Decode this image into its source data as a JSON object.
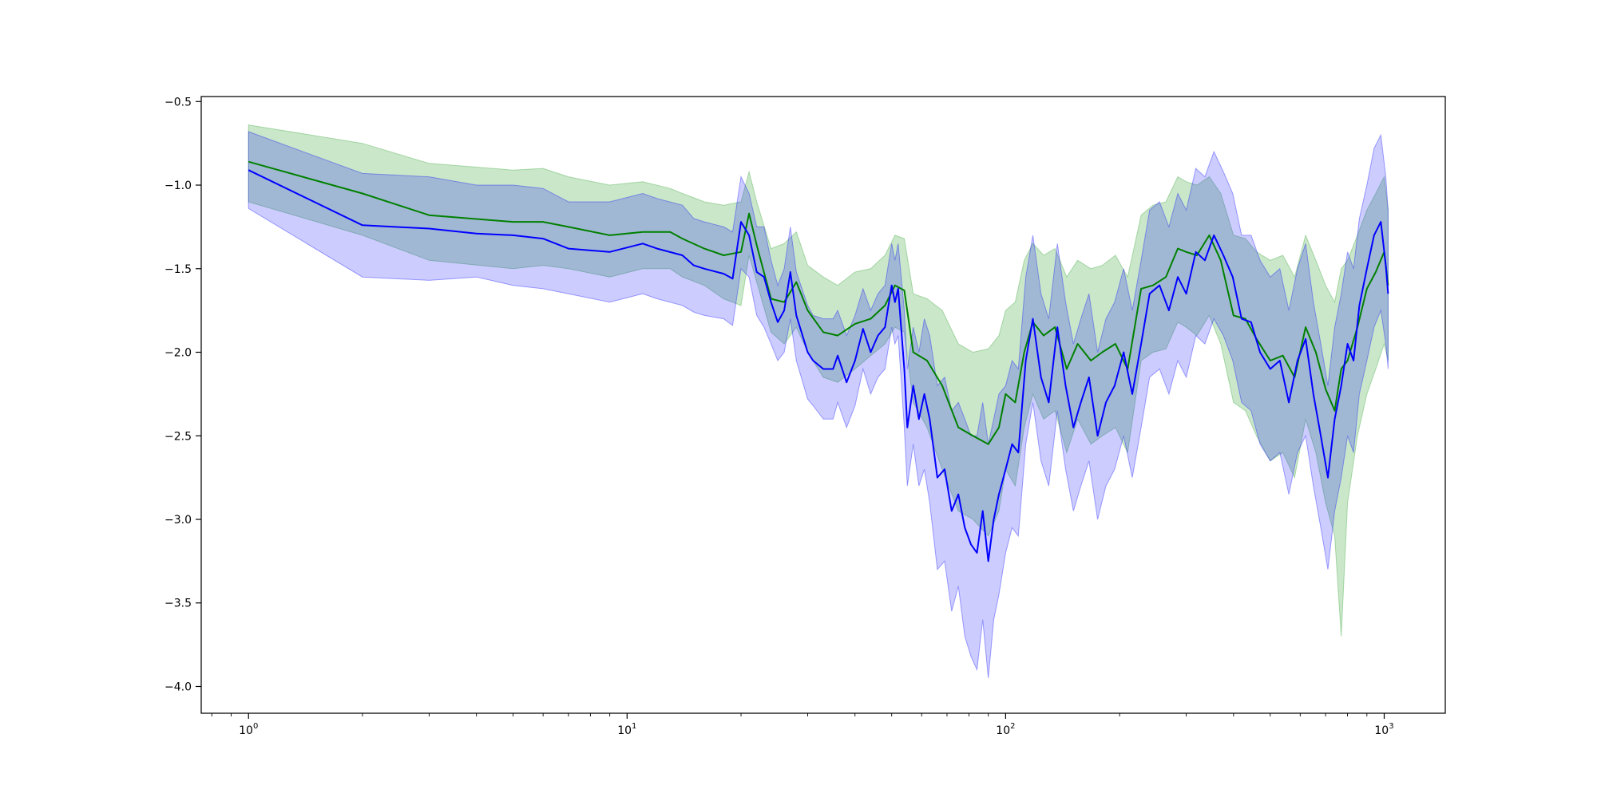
{
  "chart_data": {
    "type": "line",
    "title": "",
    "xlabel": "",
    "ylabel": "",
    "xscale": "log",
    "xlim": [
      0.75,
      1450
    ],
    "ylim": [
      -4.16,
      -0.47
    ],
    "grid": false,
    "legend": "none",
    "x_ticks": [
      {
        "value": 1,
        "base": "10",
        "exp": "0"
      },
      {
        "value": 10,
        "base": "10",
        "exp": "1"
      },
      {
        "value": 100,
        "base": "10",
        "exp": "2"
      },
      {
        "value": 1000,
        "base": "10",
        "exp": "3"
      }
    ],
    "y_ticks": [
      {
        "value": -0.5,
        "label": "−0.5"
      },
      {
        "value": -1.0,
        "label": "−1.0"
      },
      {
        "value": -1.5,
        "label": "−1.5"
      },
      {
        "value": -2.0,
        "label": "−2.0"
      },
      {
        "value": -2.5,
        "label": "−2.5"
      },
      {
        "value": -3.0,
        "label": "−3.0"
      },
      {
        "value": -3.5,
        "label": "−3.5"
      },
      {
        "value": -4.0,
        "label": "−4.0"
      }
    ],
    "series": [
      {
        "color": "#008000",
        "band_color": "#2ca02c",
        "band_opacity": 0.25,
        "x": [
          1,
          2,
          3,
          5,
          6,
          7,
          9,
          11,
          13,
          14,
          16,
          18,
          20,
          21,
          22,
          24,
          26,
          28,
          30,
          33,
          36,
          40,
          44,
          48,
          51,
          54,
          57,
          62,
          68,
          75,
          82,
          90,
          96,
          100,
          106,
          112,
          118,
          126,
          135,
          145,
          155,
          168,
          180,
          195,
          210,
          228,
          245,
          265,
          285,
          300,
          320,
          345,
          370,
          400,
          430,
          460,
          500,
          540,
          580,
          620,
          660,
          700,
          740,
          770,
          800,
          850,
          900,
          950,
          1000,
          1024
        ],
        "y": [
          -0.86,
          -1.05,
          -1.18,
          -1.22,
          -1.22,
          -1.25,
          -1.3,
          -1.28,
          -1.28,
          -1.32,
          -1.38,
          -1.42,
          -1.4,
          -1.17,
          -1.36,
          -1.68,
          -1.7,
          -1.58,
          -1.75,
          -1.88,
          -1.9,
          -1.83,
          -1.8,
          -1.72,
          -1.6,
          -1.63,
          -2.0,
          -2.05,
          -2.2,
          -2.45,
          -2.5,
          -2.55,
          -2.45,
          -2.25,
          -2.3,
          -2.0,
          -1.82,
          -1.9,
          -1.85,
          -2.1,
          -1.95,
          -2.05,
          -2.0,
          -1.95,
          -2.1,
          -1.62,
          -1.6,
          -1.55,
          -1.38,
          -1.4,
          -1.42,
          -1.3,
          -1.45,
          -1.78,
          -1.8,
          -1.92,
          -2.05,
          -2.02,
          -2.15,
          -1.85,
          -2.0,
          -2.22,
          -2.35,
          -2.1,
          -2.05,
          -1.85,
          -1.62,
          -1.52,
          -1.4,
          -1.6
        ],
        "lower": [
          -1.1,
          -1.3,
          -1.45,
          -1.5,
          -1.48,
          -1.5,
          -1.55,
          -1.5,
          -1.5,
          -1.55,
          -1.6,
          -1.68,
          -1.72,
          -1.42,
          -1.58,
          -1.88,
          -1.95,
          -1.85,
          -2.0,
          -2.15,
          -2.18,
          -2.1,
          -2.02,
          -1.95,
          -1.85,
          -1.88,
          -2.3,
          -2.45,
          -2.7,
          -2.95,
          -3.0,
          -3.1,
          -2.95,
          -2.7,
          -2.8,
          -2.45,
          -2.25,
          -2.4,
          -2.35,
          -2.6,
          -2.4,
          -2.55,
          -2.5,
          -2.45,
          -2.6,
          -2.05,
          -2.0,
          -1.98,
          -1.82,
          -1.85,
          -1.9,
          -1.78,
          -1.95,
          -2.3,
          -2.35,
          -2.5,
          -2.65,
          -2.6,
          -2.75,
          -2.4,
          -2.6,
          -2.9,
          -3.1,
          -3.7,
          -2.9,
          -2.5,
          -2.25,
          -2.1,
          -1.95,
          -2.05
        ],
        "upper": [
          -0.64,
          -0.75,
          -0.87,
          -0.91,
          -0.9,
          -0.95,
          -1.0,
          -0.98,
          -1.02,
          -1.05,
          -1.1,
          -1.12,
          -1.1,
          -0.92,
          -1.1,
          -1.38,
          -1.35,
          -1.28,
          -1.48,
          -1.55,
          -1.6,
          -1.52,
          -1.5,
          -1.42,
          -1.3,
          -1.32,
          -1.65,
          -1.68,
          -1.75,
          -1.95,
          -2.0,
          -1.98,
          -1.9,
          -1.75,
          -1.7,
          -1.45,
          -1.35,
          -1.42,
          -1.38,
          -1.55,
          -1.45,
          -1.5,
          -1.48,
          -1.42,
          -1.55,
          -1.18,
          -1.12,
          -1.1,
          -0.95,
          -0.98,
          -1.0,
          -0.95,
          -1.05,
          -1.3,
          -1.32,
          -1.4,
          -1.45,
          -1.42,
          -1.55,
          -1.3,
          -1.45,
          -1.6,
          -1.7,
          -1.5,
          -1.45,
          -1.3,
          -1.15,
          -1.05,
          -0.95,
          -1.15
        ]
      },
      {
        "color": "#0000ff",
        "band_color": "#0000ff",
        "band_opacity": 0.2,
        "x": [
          1,
          2,
          3,
          4,
          5,
          6,
          7,
          9,
          11,
          12,
          14,
          15,
          16,
          18,
          19,
          20,
          21,
          22,
          23,
          24,
          25,
          26,
          27,
          28,
          30,
          31,
          33,
          35,
          36,
          38,
          40,
          42,
          44,
          46,
          48,
          50,
          51,
          52,
          54,
          55,
          57,
          59,
          61,
          63,
          66,
          69,
          72,
          75,
          78,
          81,
          84,
          87,
          90,
          93,
          96,
          100,
          104,
          108,
          113,
          118,
          124,
          130,
          137,
          144,
          151,
          158,
          166,
          175,
          184,
          194,
          205,
          216,
          228,
          240,
          255,
          270,
          285,
          300,
          318,
          336,
          355,
          376,
          398,
          420,
          445,
          470,
          500,
          530,
          560,
          590,
          620,
          650,
          680,
          710,
          740,
          770,
          800,
          830,
          860,
          900,
          940,
          980,
          1010,
          1024
        ],
        "y": [
          -0.91,
          -1.24,
          -1.26,
          -1.29,
          -1.3,
          -1.32,
          -1.38,
          -1.4,
          -1.35,
          -1.38,
          -1.42,
          -1.48,
          -1.5,
          -1.53,
          -1.56,
          -1.22,
          -1.3,
          -1.52,
          -1.55,
          -1.7,
          -1.82,
          -1.75,
          -1.52,
          -1.78,
          -2.0,
          -2.05,
          -2.1,
          -2.1,
          -2.02,
          -2.18,
          -2.05,
          -1.86,
          -2.0,
          -1.9,
          -1.85,
          -1.6,
          -1.7,
          -1.62,
          -2.1,
          -2.45,
          -2.2,
          -2.4,
          -2.25,
          -2.4,
          -2.75,
          -2.7,
          -2.95,
          -2.85,
          -3.05,
          -3.15,
          -3.2,
          -2.95,
          -3.25,
          -3.0,
          -2.85,
          -2.7,
          -2.55,
          -2.6,
          -2.05,
          -1.8,
          -2.15,
          -2.3,
          -1.85,
          -2.2,
          -2.45,
          -2.3,
          -2.15,
          -2.5,
          -2.3,
          -2.2,
          -2.0,
          -2.25,
          -1.95,
          -1.65,
          -1.6,
          -1.75,
          -1.55,
          -1.65,
          -1.4,
          -1.45,
          -1.3,
          -1.42,
          -1.55,
          -1.8,
          -1.82,
          -2.0,
          -2.1,
          -2.05,
          -2.3,
          -2.05,
          -1.92,
          -2.25,
          -2.5,
          -2.75,
          -2.4,
          -2.2,
          -1.95,
          -2.05,
          -1.72,
          -1.5,
          -1.3,
          -1.22,
          -1.48,
          -1.65
        ],
        "lower": [
          -1.14,
          -1.55,
          -1.57,
          -1.55,
          -1.6,
          -1.62,
          -1.65,
          -1.7,
          -1.65,
          -1.68,
          -1.72,
          -1.76,
          -1.78,
          -1.8,
          -1.84,
          -1.5,
          -1.55,
          -1.78,
          -1.85,
          -1.95,
          -2.05,
          -2.0,
          -1.8,
          -2.05,
          -2.28,
          -2.32,
          -2.4,
          -2.4,
          -2.3,
          -2.45,
          -2.32,
          -2.1,
          -2.25,
          -2.15,
          -2.1,
          -1.85,
          -1.95,
          -1.9,
          -2.45,
          -2.8,
          -2.55,
          -2.8,
          -2.7,
          -2.9,
          -3.3,
          -3.25,
          -3.55,
          -3.4,
          -3.7,
          -3.82,
          -3.9,
          -3.6,
          -3.95,
          -3.6,
          -3.45,
          -3.2,
          -3.05,
          -3.1,
          -2.55,
          -2.3,
          -2.65,
          -2.8,
          -2.35,
          -2.7,
          -2.95,
          -2.8,
          -2.65,
          -3.0,
          -2.8,
          -2.7,
          -2.5,
          -2.75,
          -2.45,
          -2.15,
          -2.1,
          -2.25,
          -2.05,
          -2.15,
          -1.9,
          -1.95,
          -1.8,
          -1.9,
          -2.05,
          -2.3,
          -2.35,
          -2.55,
          -2.65,
          -2.6,
          -2.85,
          -2.6,
          -2.5,
          -2.8,
          -3.05,
          -3.3,
          -2.95,
          -2.75,
          -2.5,
          -2.6,
          -2.25,
          -2.05,
          -1.85,
          -1.75,
          -1.95,
          -2.1
        ],
        "upper": [
          -0.68,
          -0.93,
          -0.95,
          -1.0,
          -1.0,
          -1.02,
          -1.1,
          -1.1,
          -1.05,
          -1.08,
          -1.12,
          -1.2,
          -1.22,
          -1.25,
          -1.28,
          -0.95,
          -1.05,
          -1.25,
          -1.25,
          -1.45,
          -1.6,
          -1.5,
          -1.25,
          -1.52,
          -1.72,
          -1.78,
          -1.8,
          -1.8,
          -1.75,
          -1.9,
          -1.78,
          -1.62,
          -1.75,
          -1.65,
          -1.6,
          -1.35,
          -1.45,
          -1.35,
          -1.75,
          -2.1,
          -1.85,
          -2.0,
          -1.8,
          -1.9,
          -2.2,
          -2.15,
          -2.35,
          -2.3,
          -2.4,
          -2.5,
          -2.5,
          -2.3,
          -2.55,
          -2.4,
          -2.25,
          -2.2,
          -2.05,
          -2.1,
          -1.55,
          -1.3,
          -1.65,
          -1.8,
          -1.35,
          -1.7,
          -1.95,
          -1.8,
          -1.65,
          -2.0,
          -1.8,
          -1.7,
          -1.5,
          -1.75,
          -1.45,
          -1.15,
          -1.1,
          -1.25,
          -1.05,
          -1.15,
          -0.9,
          -0.95,
          -0.8,
          -0.92,
          -1.05,
          -1.3,
          -1.3,
          -1.45,
          -1.55,
          -1.5,
          -1.75,
          -1.5,
          -1.35,
          -1.7,
          -1.95,
          -2.2,
          -1.85,
          -1.65,
          -1.4,
          -1.5,
          -1.2,
          -1.0,
          -0.78,
          -0.7,
          -0.95,
          -1.15
        ]
      }
    ]
  }
}
